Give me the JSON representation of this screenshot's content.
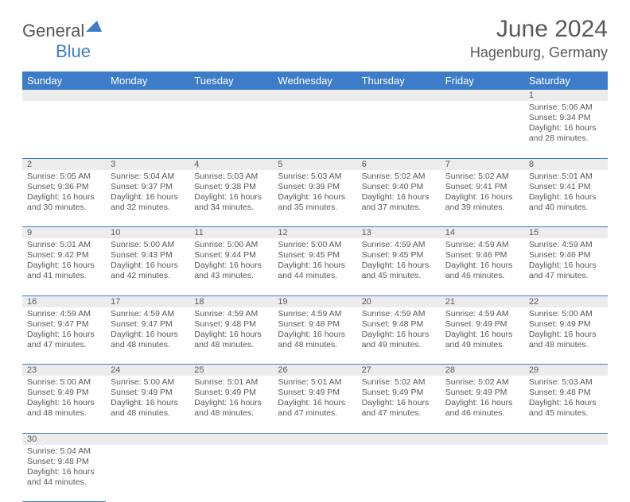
{
  "brand": {
    "part1": "General",
    "part2": "Blue"
  },
  "title": "June 2024",
  "location": "Hagenburg, Germany",
  "colors": {
    "header_bg": "#3d7cc9",
    "header_text": "#ffffff",
    "daynum_bg": "#ececec",
    "text": "#595959",
    "border": "#3d7cc9"
  },
  "weekdays": [
    "Sunday",
    "Monday",
    "Tuesday",
    "Wednesday",
    "Thursday",
    "Friday",
    "Saturday"
  ],
  "weeks": [
    [
      null,
      null,
      null,
      null,
      null,
      null,
      {
        "n": "1",
        "sr": "5:06 AM",
        "ss": "9:34 PM",
        "dl": "16 hours and 28 minutes."
      }
    ],
    [
      {
        "n": "2",
        "sr": "5:05 AM",
        "ss": "9:36 PM",
        "dl": "16 hours and 30 minutes."
      },
      {
        "n": "3",
        "sr": "5:04 AM",
        "ss": "9:37 PM",
        "dl": "16 hours and 32 minutes."
      },
      {
        "n": "4",
        "sr": "5:03 AM",
        "ss": "9:38 PM",
        "dl": "16 hours and 34 minutes."
      },
      {
        "n": "5",
        "sr": "5:03 AM",
        "ss": "9:39 PM",
        "dl": "16 hours and 35 minutes."
      },
      {
        "n": "6",
        "sr": "5:02 AM",
        "ss": "9:40 PM",
        "dl": "16 hours and 37 minutes."
      },
      {
        "n": "7",
        "sr": "5:02 AM",
        "ss": "9:41 PM",
        "dl": "16 hours and 39 minutes."
      },
      {
        "n": "8",
        "sr": "5:01 AM",
        "ss": "9:41 PM",
        "dl": "16 hours and 40 minutes."
      }
    ],
    [
      {
        "n": "9",
        "sr": "5:01 AM",
        "ss": "9:42 PM",
        "dl": "16 hours and 41 minutes."
      },
      {
        "n": "10",
        "sr": "5:00 AM",
        "ss": "9:43 PM",
        "dl": "16 hours and 42 minutes."
      },
      {
        "n": "11",
        "sr": "5:00 AM",
        "ss": "9:44 PM",
        "dl": "16 hours and 43 minutes."
      },
      {
        "n": "12",
        "sr": "5:00 AM",
        "ss": "9:45 PM",
        "dl": "16 hours and 44 minutes."
      },
      {
        "n": "13",
        "sr": "4:59 AM",
        "ss": "9:45 PM",
        "dl": "16 hours and 45 minutes."
      },
      {
        "n": "14",
        "sr": "4:59 AM",
        "ss": "9:46 PM",
        "dl": "16 hours and 46 minutes."
      },
      {
        "n": "15",
        "sr": "4:59 AM",
        "ss": "9:46 PM",
        "dl": "16 hours and 47 minutes."
      }
    ],
    [
      {
        "n": "16",
        "sr": "4:59 AM",
        "ss": "9:47 PM",
        "dl": "16 hours and 47 minutes."
      },
      {
        "n": "17",
        "sr": "4:59 AM",
        "ss": "9:47 PM",
        "dl": "16 hours and 48 minutes."
      },
      {
        "n": "18",
        "sr": "4:59 AM",
        "ss": "9:48 PM",
        "dl": "16 hours and 48 minutes."
      },
      {
        "n": "19",
        "sr": "4:59 AM",
        "ss": "9:48 PM",
        "dl": "16 hours and 48 minutes."
      },
      {
        "n": "20",
        "sr": "4:59 AM",
        "ss": "9:48 PM",
        "dl": "16 hours and 49 minutes."
      },
      {
        "n": "21",
        "sr": "4:59 AM",
        "ss": "9:49 PM",
        "dl": "16 hours and 49 minutes."
      },
      {
        "n": "22",
        "sr": "5:00 AM",
        "ss": "9:49 PM",
        "dl": "16 hours and 48 minutes."
      }
    ],
    [
      {
        "n": "23",
        "sr": "5:00 AM",
        "ss": "9:49 PM",
        "dl": "16 hours and 48 minutes."
      },
      {
        "n": "24",
        "sr": "5:00 AM",
        "ss": "9:49 PM",
        "dl": "16 hours and 48 minutes."
      },
      {
        "n": "25",
        "sr": "5:01 AM",
        "ss": "9:49 PM",
        "dl": "16 hours and 48 minutes."
      },
      {
        "n": "26",
        "sr": "5:01 AM",
        "ss": "9:49 PM",
        "dl": "16 hours and 47 minutes."
      },
      {
        "n": "27",
        "sr": "5:02 AM",
        "ss": "9:49 PM",
        "dl": "16 hours and 47 minutes."
      },
      {
        "n": "28",
        "sr": "5:02 AM",
        "ss": "9:49 PM",
        "dl": "16 hours and 46 minutes."
      },
      {
        "n": "29",
        "sr": "5:03 AM",
        "ss": "9:48 PM",
        "dl": "16 hours and 45 minutes."
      }
    ],
    [
      {
        "n": "30",
        "sr": "5:04 AM",
        "ss": "9:48 PM",
        "dl": "16 hours and 44 minutes."
      },
      null,
      null,
      null,
      null,
      null,
      null
    ]
  ],
  "labels": {
    "sunrise": "Sunrise:",
    "sunset": "Sunset:",
    "daylight": "Daylight:"
  }
}
